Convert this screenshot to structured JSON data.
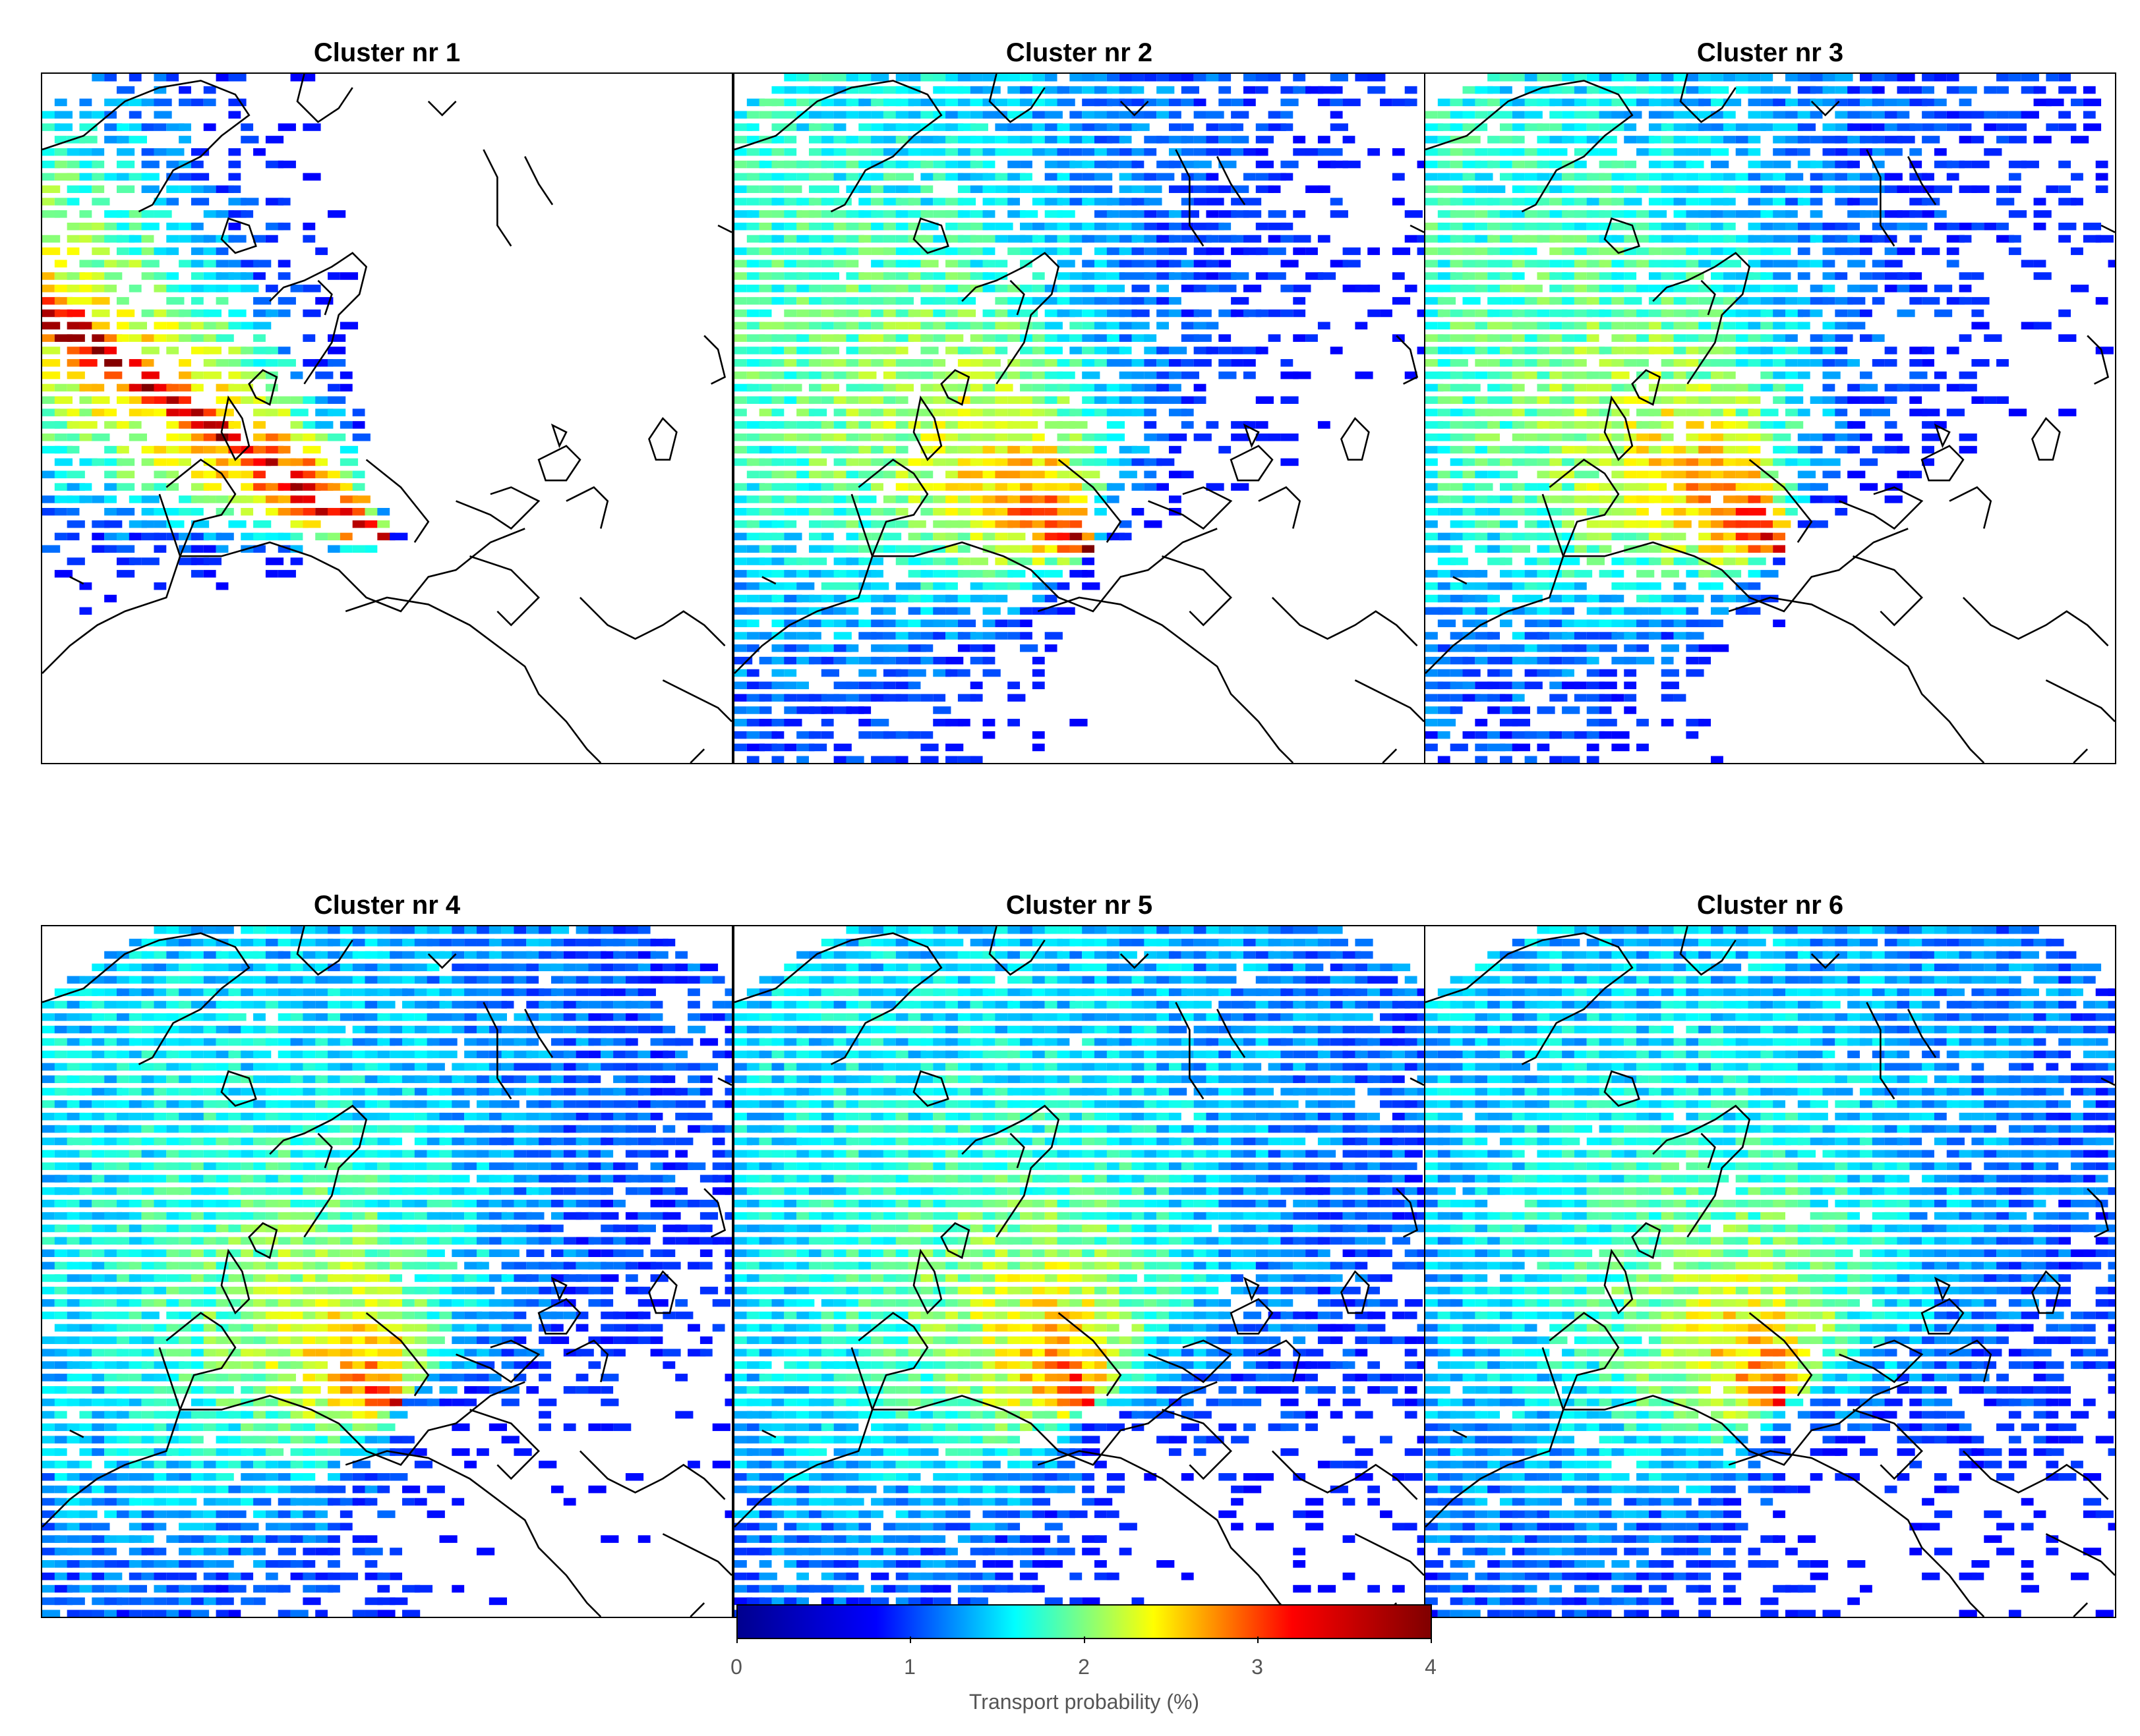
{
  "panels": [
    {
      "title": "Cluster nr 1",
      "style": "north-west"
    },
    {
      "title": "Cluster nr 2",
      "style": "north-west-broad"
    },
    {
      "title": "Cluster nr 3",
      "style": "north-west-broad"
    },
    {
      "title": "Cluster nr 4",
      "style": "spread-west"
    },
    {
      "title": "Cluster nr 5",
      "style": "spread-south"
    },
    {
      "title": "Cluster nr 6",
      "style": "spread-south-east"
    }
  ],
  "colorbar": {
    "label": "Transport probability (%)",
    "ticks": [
      "0",
      "1",
      "2",
      "3",
      "4"
    ],
    "range": [
      0,
      4
    ],
    "colormap": "jet",
    "colors": [
      "#00008f",
      "#0000ff",
      "#00ffff",
      "#ffff00",
      "#ff0000",
      "#800000"
    ]
  },
  "map": {
    "coastline_color": "#000000",
    "background_color": "#ffffff"
  }
}
